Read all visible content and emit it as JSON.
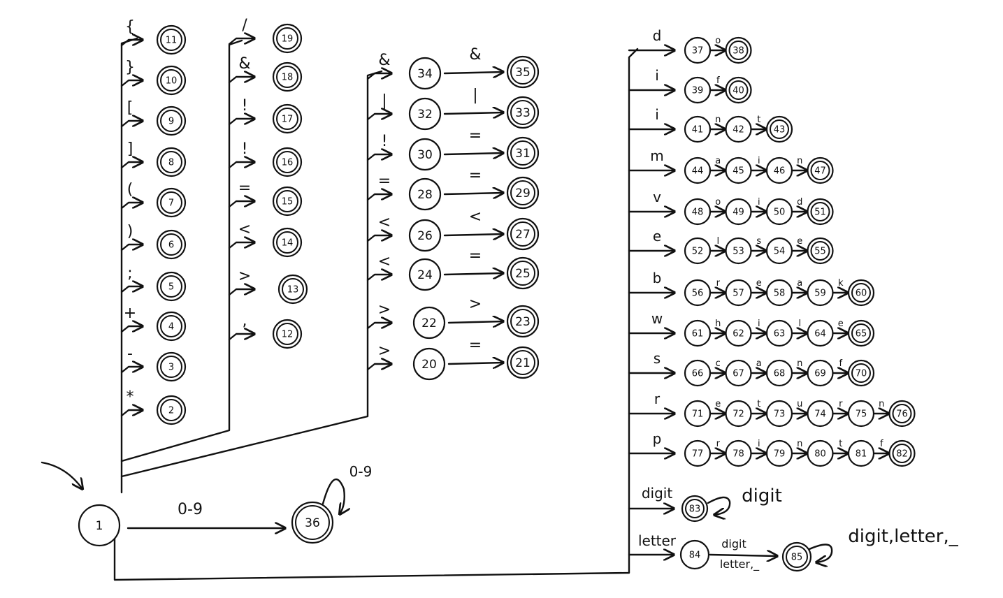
{
  "states": [
    "1",
    "2",
    "3",
    "4",
    "5",
    "6",
    "7",
    "8",
    "9",
    "10",
    "11",
    "12",
    "13",
    "14",
    "15",
    "16",
    "17",
    "18",
    "19",
    "20",
    "21",
    "22",
    "23",
    "24",
    "25",
    "26",
    "27",
    "28",
    "29",
    "30",
    "31",
    "32",
    "33",
    "34",
    "35",
    "36",
    "37",
    "38",
    "39",
    "40",
    "41",
    "42",
    "43",
    "44",
    "45",
    "46",
    "47",
    "48",
    "49",
    "50",
    "51",
    "52",
    "53",
    "54",
    "55",
    "56",
    "57",
    "58",
    "59",
    "60",
    "61",
    "62",
    "63",
    "64",
    "65",
    "66",
    "67",
    "68",
    "69",
    "70",
    "71",
    "72",
    "73",
    "74",
    "75",
    "76",
    "77",
    "78",
    "79",
    "80",
    "81",
    "82",
    "83",
    "84",
    "85"
  ],
  "accepting_states": [
    "2",
    "3",
    "4",
    "5",
    "6",
    "7",
    "8",
    "9",
    "10",
    "11",
    "12",
    "13",
    "14",
    "15",
    "16",
    "17",
    "18",
    "19",
    "21",
    "23",
    "25",
    "27",
    "29",
    "31",
    "33",
    "35",
    "36",
    "38",
    "40",
    "43",
    "47",
    "51",
    "55",
    "60",
    "65",
    "70",
    "76",
    "82",
    "83",
    "85"
  ],
  "start_state": "1",
  "symbols_branch_1": [
    {
      "label": "{",
      "target": "11"
    },
    {
      "label": "}",
      "target": "10"
    },
    {
      "label": "[",
      "target": "9"
    },
    {
      "label": "]",
      "target": "8"
    },
    {
      "label": "(",
      "target": "7"
    },
    {
      "label": ")",
      "target": "6"
    },
    {
      "label": ";",
      "target": "5"
    },
    {
      "label": "+",
      "target": "4"
    },
    {
      "label": "-",
      "target": "3"
    },
    {
      "label": "*",
      "target": "2"
    }
  ],
  "symbols_branch_2": [
    {
      "label": "/",
      "target": "19"
    },
    {
      "label": "&",
      "target": "18"
    },
    {
      "label": "!",
      "target": "17"
    },
    {
      "label": "!",
      "target": "16"
    },
    {
      "label": "=",
      "target": "15"
    },
    {
      "label": "<",
      "target": "14"
    },
    {
      "label": ">",
      "target": "13"
    },
    {
      "label": ",",
      "target": "12"
    }
  ],
  "two_char_branch": [
    {
      "first": "&",
      "mid": "34",
      "second": "&",
      "final": "35"
    },
    {
      "first": "|",
      "mid": "32",
      "second": "|",
      "final": "33"
    },
    {
      "first": "!",
      "mid": "30",
      "second": "=",
      "final": "31"
    },
    {
      "first": "=",
      "mid": "28",
      "second": "=",
      "final": "29"
    },
    {
      "first": "<",
      "mid": "26",
      "second": "<",
      "final": "27"
    },
    {
      "first": "<",
      "mid": "24",
      "second": "=",
      "final": "25"
    },
    {
      "first": ">",
      "mid": "22",
      "second": ">",
      "final": "23"
    },
    {
      "first": ">",
      "mid": "20",
      "second": "=",
      "final": "21"
    }
  ],
  "number_edge": {
    "label": "0-9",
    "loop_label": "0-9",
    "target": "36"
  },
  "keywords": [
    {
      "first": "d",
      "states": [
        "37",
        "38"
      ],
      "labels": [
        "o"
      ]
    },
    {
      "first": "i",
      "states": [
        "39",
        "40"
      ],
      "labels": [
        "f"
      ]
    },
    {
      "first": "i",
      "states": [
        "41",
        "42",
        "43"
      ],
      "labels": [
        "n",
        "t"
      ]
    },
    {
      "first": "m",
      "states": [
        "44",
        "45",
        "46",
        "47"
      ],
      "labels": [
        "a",
        "i",
        "n"
      ]
    },
    {
      "first": "v",
      "states": [
        "48",
        "49",
        "50",
        "51"
      ],
      "labels": [
        "o",
        "i",
        "d"
      ]
    },
    {
      "first": "e",
      "states": [
        "52",
        "53",
        "54",
        "55"
      ],
      "labels": [
        "l",
        "s",
        "e"
      ]
    },
    {
      "first": "b",
      "states": [
        "56",
        "57",
        "58",
        "59",
        "60"
      ],
      "labels": [
        "r",
        "e",
        "a",
        "k"
      ]
    },
    {
      "first": "w",
      "states": [
        "61",
        "62",
        "63",
        "64",
        "65"
      ],
      "labels": [
        "h",
        "i",
        "l",
        "e"
      ]
    },
    {
      "first": "s",
      "states": [
        "66",
        "67",
        "68",
        "69",
        "70"
      ],
      "labels": [
        "c",
        "a",
        "n",
        "f"
      ]
    },
    {
      "first": "r",
      "states": [
        "71",
        "72",
        "73",
        "74",
        "75",
        "76"
      ],
      "labels": [
        "e",
        "t",
        "u",
        "r",
        "n"
      ]
    },
    {
      "first": "p",
      "states": [
        "77",
        "78",
        "79",
        "80",
        "81",
        "82"
      ],
      "labels": [
        "r",
        "i",
        "n",
        "t",
        "f"
      ]
    }
  ],
  "digit_row": {
    "label": "digit",
    "state": "83",
    "loop_label": "digit"
  },
  "letter_row": {
    "label": "letter",
    "state": "84",
    "edge_top": "digit",
    "edge_bottom": "letter,_",
    "final": "85",
    "loop_label": "digit,letter,_"
  }
}
